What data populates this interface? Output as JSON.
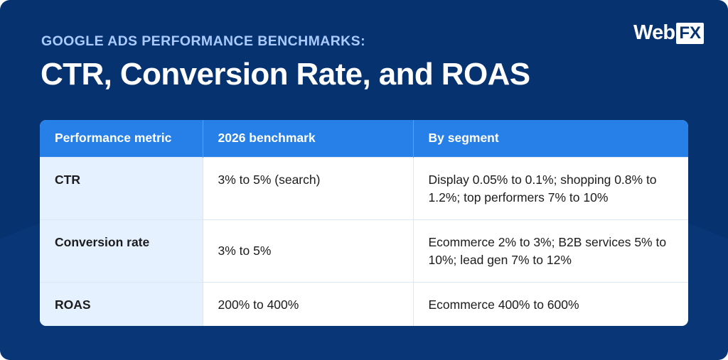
{
  "header": {
    "eyebrow": "GOOGLE ADS PERFORMANCE BENCHMARKS:",
    "title": "CTR, Conversion Rate, and ROAS"
  },
  "logo": {
    "web": "Web",
    "fx": "FX"
  },
  "table": {
    "columns": [
      "Performance metric",
      "2026 benchmark",
      "By segment"
    ],
    "rows": [
      {
        "metric": "CTR",
        "benchmark": "3% to 5% (search)",
        "segment": "Display 0.05% to 0.1%; shopping 0.8% to 1.2%; top performers 7% to 10%"
      },
      {
        "metric": "Conversion rate",
        "benchmark": "3% to 5%",
        "segment": "Ecommerce 2% to 3%; B2B services 5% to 10%; lead gen 7% to 12%"
      },
      {
        "metric": "ROAS",
        "benchmark": "200% to 400%",
        "segment": "Ecommerce 400% to 600%"
      }
    ]
  },
  "colors": {
    "background": "#06326f",
    "header_row": "#2680e8",
    "eyebrow": "#a9cbff",
    "first_column": "#e6f1ff"
  }
}
